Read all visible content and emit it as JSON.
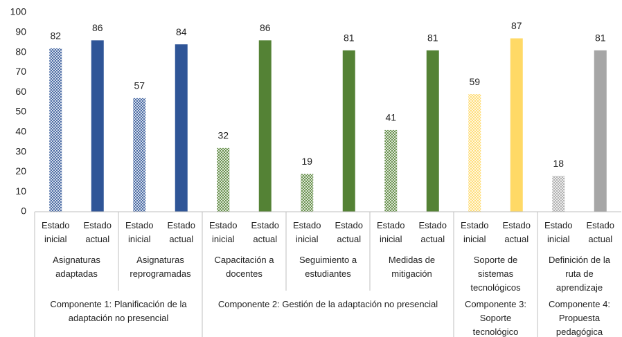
{
  "chart_data": {
    "type": "bar",
    "categories": [
      "Estado inicial",
      "Estado actual",
      "Estado inicial",
      "Estado actual",
      "Estado inicial",
      "Estado actual",
      "Estado inicial",
      "Estado actual",
      "Estado inicial",
      "Estado actual",
      "Estado inicial",
      "Estado actual",
      "Estado inicial",
      "Estado actual"
    ],
    "values": [
      82,
      86,
      57,
      84,
      32,
      86,
      19,
      81,
      41,
      81,
      59,
      87,
      18,
      81
    ],
    "colors": [
      "#2f5597",
      "#2f5597",
      "#2f5597",
      "#2f5597",
      "#548235",
      "#548235",
      "#548235",
      "#548235",
      "#548235",
      "#548235",
      "#ffd966",
      "#ffd966",
      "#a6a6a6",
      "#a6a6a6"
    ],
    "hatched": [
      true,
      false,
      true,
      false,
      true,
      false,
      true,
      false,
      true,
      false,
      true,
      false,
      true,
      false
    ],
    "subgroups": [
      {
        "label": "Asignaturas adaptadas",
        "span": 2
      },
      {
        "label": "Asignaturas reprogramadas",
        "span": 2
      },
      {
        "label": "Capacitación a docentes",
        "span": 2
      },
      {
        "label": "Seguimiento a estudiantes",
        "span": 2
      },
      {
        "label": "Medidas de mitigación",
        "span": 2
      },
      {
        "label": "Soporte de sistemas tecnológicos",
        "span": 2
      },
      {
        "label": "Definición de la ruta de aprendizaje",
        "span": 2
      }
    ],
    "components": [
      {
        "label": "Componente 1: Planificación de la adaptación no presencial",
        "span": 2
      },
      {
        "label": "Componente 2: Gestión de la adaptación no presencial",
        "span": 3
      },
      {
        "label": "Componente 3: Soporte tecnológico",
        "span": 1
      },
      {
        "label": "Componente 4: Propuesta pedagógica",
        "span": 1
      }
    ],
    "ylim": [
      0,
      100
    ],
    "yticks": [
      0,
      10,
      20,
      30,
      40,
      50,
      60,
      70,
      80,
      90,
      100
    ],
    "grid": false
  }
}
